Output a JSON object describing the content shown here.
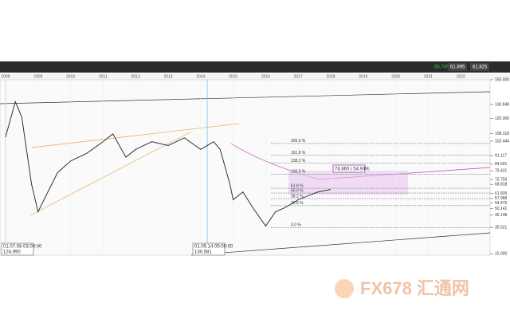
{
  "toolbar": {
    "change": "65.74%",
    "bid": "61.895",
    "ask": "61.825"
  },
  "chart_data": {
    "type": "line",
    "x": [
      2008.0,
      2008.3,
      2008.5,
      2008.8,
      2009.0,
      2009.3,
      2009.6,
      2010.0,
      2010.5,
      2011.0,
      2011.3,
      2011.7,
      2012.0,
      2012.5,
      2013.0,
      2013.5,
      2014.0,
      2014.4,
      2014.6,
      2014.9,
      2015.0,
      2015.3,
      2015.6,
      2016.0,
      2016.3,
      2016.6,
      2017.0,
      2017.3,
      2017.6,
      2018.0
    ],
    "values": [
      105.5,
      133,
      121,
      69,
      47.6,
      63,
      78,
      87,
      93,
      102,
      108,
      90,
      96,
      102,
      99,
      105,
      96,
      102,
      96,
      69,
      57,
      63,
      51,
      36.6,
      47.6,
      51,
      57,
      60,
      63,
      65
    ],
    "color": "#333333",
    "xlim": [
      2007.83,
      2022.9
    ],
    "ylim": [
      14,
      150
    ],
    "xticks": [
      2008,
      2009,
      2010,
      2011,
      2012,
      2013,
      2014,
      2015,
      2016,
      2017,
      2018,
      2019,
      2020,
      2021,
      2022
    ],
    "yticks": [
      {
        "value": 150,
        "label": "150.000"
      },
      {
        "value": 130.848,
        "label": "130.848"
      },
      {
        "value": 120,
        "label": "120.000"
      },
      {
        "value": 108.318,
        "label": "108.318"
      },
      {
        "value": 102.444,
        "label": "102.444"
      },
      {
        "value": 91.117,
        "label": "91.117"
      },
      {
        "value": 84.691,
        "label": "84.691"
      },
      {
        "value": 79.431,
        "label": "79.431"
      },
      {
        "value": 72.75,
        "label": "72.750"
      },
      {
        "value": 68.818,
        "label": "68.818"
      },
      {
        "value": 61.835,
        "label": "61.835"
      },
      {
        "value": 57.988,
        "label": "57.988"
      },
      {
        "value": 54.475,
        "label": "54.475"
      },
      {
        "value": 50.141,
        "label": "50.141"
      },
      {
        "value": 45.148,
        "label": "45.148"
      },
      {
        "value": 35.521,
        "label": "35.521"
      },
      {
        "value": 15,
        "label": "15.000"
      }
    ],
    "fib_levels": [
      {
        "value": 100.6,
        "label": "200.0 %"
      },
      {
        "value": 91.5,
        "label": "161.8 %"
      },
      {
        "value": 85.4,
        "label": "138.2 %"
      },
      {
        "value": 76.8,
        "label": "100.0 %"
      },
      {
        "value": 65.9,
        "label": "61.8 %"
      },
      {
        "value": 62.2,
        "label": "50.0 %"
      },
      {
        "value": 57.9,
        "label": "38.2 %"
      },
      {
        "value": 52.4,
        "label": "23.6 %"
      },
      {
        "value": 35.4,
        "label": "0.0 %"
      }
    ],
    "tooltips": [
      {
        "time": "01.07.08 03:00:00",
        "price": "124.990"
      },
      {
        "time": "01.05.14 05:00:00",
        "price": "136.581"
      }
    ],
    "measure": "78.860 | 54.94%"
  },
  "watermark": "FX678 汇通网"
}
